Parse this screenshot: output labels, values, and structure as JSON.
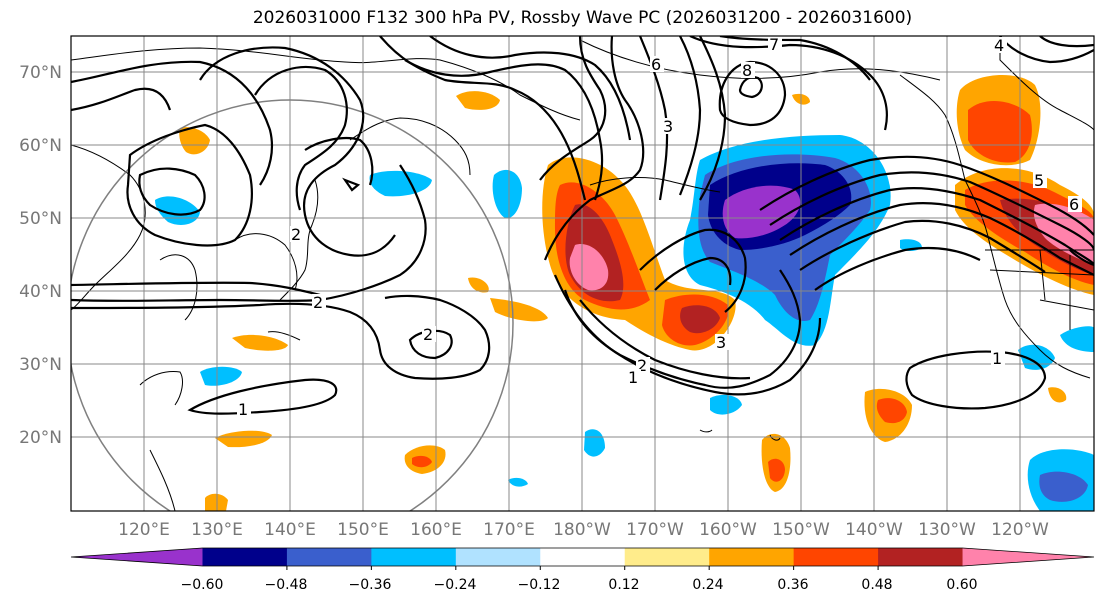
{
  "title": "2026031000 F132 300 hPa PV, Rossby Wave PC (2026031200 - 2026031600)",
  "lat_labels": [
    "70°N",
    "60°N",
    "50°N",
    "40°N",
    "30°N",
    "20°N"
  ],
  "lon_labels": [
    "120°E",
    "130°E",
    "140°E",
    "150°E",
    "160°E",
    "170°E",
    "180°W",
    "170°W",
    "160°W",
    "150°W",
    "140°W",
    "130°W",
    "120°W"
  ],
  "contour_labels": [
    "6",
    "3",
    "7",
    "8",
    "4",
    "2",
    "2",
    "1",
    "2",
    "3",
    "2",
    "1",
    "1",
    "5",
    "6"
  ],
  "colorbar": {
    "tick_labels": [
      "−0.60",
      "−0.48",
      "−0.36",
      "−0.24",
      "−0.12",
      "0.12",
      "0.24",
      "0.36",
      "0.48",
      "0.60"
    ],
    "colors": [
      "#9932cc",
      "#00008b",
      "#3a5fcd",
      "#00bfff",
      "#b0e2ff",
      "#ffffff",
      "#ffec8b",
      "#ffa500",
      "#ff4500",
      "#b22222",
      "#ff82ab"
    ]
  }
}
